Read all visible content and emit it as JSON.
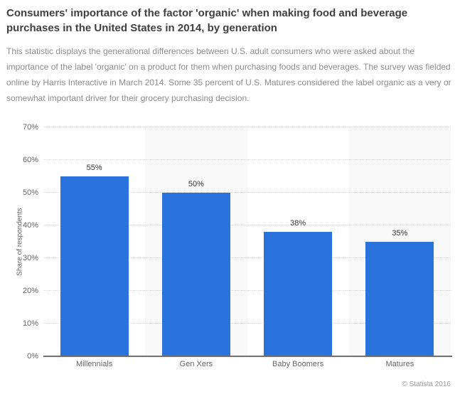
{
  "header": {
    "title": "Consumers' importance of the factor 'organic' when making food and beverage purchases in the United States in 2014, by generation"
  },
  "description": "This statistic displays the generational differences between U.S. adult consumers who were asked about the importance of the label 'organic' on a product for them when purchasing foods and beverages. The survey was fielded online by Harris Interactive in March 2014. Some 35 percent of U.S. Matures considered the label organic as a very or somewhat important driver for their grocery purchasing decision.",
  "chart_data": {
    "type": "bar",
    "title": "",
    "categories": [
      "Millennials",
      "Gen Xers",
      "Baby Boomers",
      "Matures"
    ],
    "values": [
      55,
      50,
      38,
      35
    ],
    "data_labels": [
      "55%",
      "50%",
      "38%",
      "35%"
    ],
    "xlabel": "",
    "ylabel": "Share of respondents",
    "ylim": [
      0,
      70
    ],
    "yticks": [
      0,
      10,
      20,
      30,
      40,
      50,
      60,
      70
    ],
    "ytick_labels": [
      "0%",
      "10%",
      "20%",
      "30%",
      "40%",
      "50%",
      "60%",
      "70%"
    ],
    "grid": "horizontal-dotted",
    "legend": "none",
    "bar_color": "#2a73dd",
    "plot_band_color": "#f8f8f8",
    "band_pattern": "alternating columns white/gray starting white"
  },
  "footer": {
    "copyright": "© Statista 2016"
  },
  "colors": {
    "title_text": "#404040",
    "description_text": "#8c8c8c",
    "axis_text": "#666666",
    "data_label_text": "#333333",
    "gridline": "#d9d9d9",
    "axis_line": "#707070",
    "copyright_text": "#999999",
    "background": "#ffffff"
  }
}
